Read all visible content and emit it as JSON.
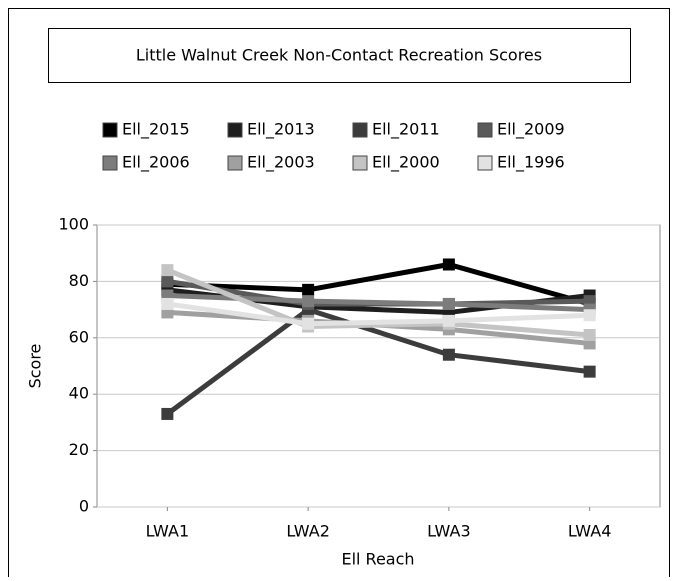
{
  "chart_data": {
    "type": "line",
    "title": "Little Walnut Creek Non-Contact Recreation Scores",
    "x_label": "Ell Reach",
    "y_label": "Score",
    "categories": [
      "LWA1",
      "LWA2",
      "LWA3",
      "LWA4"
    ],
    "series": [
      {
        "name": "Ell_2015",
        "color": "#000000",
        "values": [
          79,
          77,
          86,
          72
        ]
      },
      {
        "name": "Ell_2013",
        "color": "#1e1e1e",
        "values": [
          77,
          71,
          69,
          75
        ]
      },
      {
        "name": "Ell_2011",
        "color": "#3c3c3c",
        "values": [
          33,
          70,
          54,
          48
        ]
      },
      {
        "name": "Ell_2009",
        "color": "#5a5a5a",
        "values": [
          80,
          72,
          72,
          73
        ]
      },
      {
        "name": "Ell_2006",
        "color": "#7c7c7c",
        "values": [
          75,
          73,
          72,
          70
        ]
      },
      {
        "name": "Ell_2003",
        "color": "#a0a0a0",
        "values": [
          69,
          66,
          63,
          58
        ]
      },
      {
        "name": "Ell_2000",
        "color": "#c4c4c4",
        "values": [
          84,
          64,
          65,
          61
        ]
      },
      {
        "name": "Ell_1996",
        "color": "#e2e2e2",
        "values": [
          72,
          65,
          66,
          68
        ]
      }
    ],
    "ylim": [
      0,
      100
    ],
    "yticks": [
      0,
      20,
      40,
      60,
      80,
      100
    ],
    "grid": true
  }
}
